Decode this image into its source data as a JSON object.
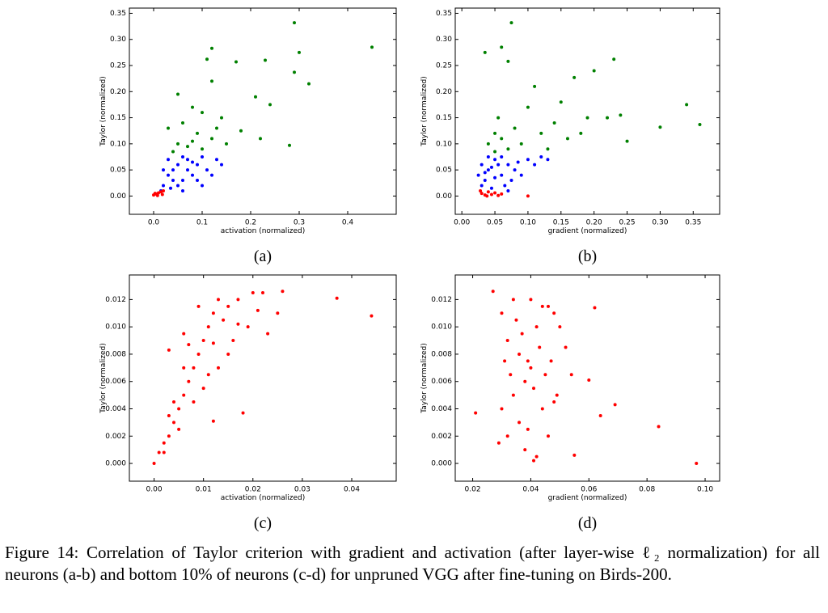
{
  "chart_data": [
    {
      "type": "scatter",
      "label": "(a)",
      "xlabel": "activation (normalized)",
      "ylabel": "Taylor (normalized)",
      "xlim": [
        -0.05,
        0.5
      ],
      "ylim": [
        -0.035,
        0.36
      ],
      "xticks": [
        {
          "value": 0,
          "label": "0.0"
        },
        0.1,
        0.2,
        0.3,
        0.4
      ],
      "yticks": [
        {
          "value": 0,
          "label": "0.00"
        },
        0.05,
        {
          "value": 0.1,
          "label": "0.10"
        },
        0.15,
        {
          "value": 0.2,
          "label": "0.20"
        },
        0.25,
        {
          "value": 0.3,
          "label": "0.30"
        },
        0.35
      ],
      "series": [
        {
          "color": "#008000",
          "x": [
            0.29,
            0.45,
            0.3,
            0.12,
            0.17,
            0.23,
            0.11,
            0.32,
            0.29,
            0.12,
            0.05,
            0.21,
            0.24,
            0.08,
            0.1,
            0.14,
            0.03,
            0.06,
            0.09,
            0.12,
            0.15,
            0.28,
            0.22,
            0.05,
            0.07,
            0.1,
            0.04,
            0.13,
            0.18,
            0.08
          ],
          "y": [
            0.332,
            0.285,
            0.275,
            0.283,
            0.257,
            0.26,
            0.262,
            0.215,
            0.237,
            0.22,
            0.195,
            0.19,
            0.175,
            0.17,
            0.16,
            0.15,
            0.13,
            0.14,
            0.12,
            0.11,
            0.1,
            0.097,
            0.11,
            0.1,
            0.095,
            0.09,
            0.085,
            0.13,
            0.125,
            0.105
          ]
        },
        {
          "color": "#0000ff",
          "x": [
            0.02,
            0.03,
            0.05,
            0.06,
            0.04,
            0.07,
            0.09,
            0.1,
            0.08,
            0.05,
            0.11,
            0.13,
            0.03,
            0.06,
            0.12,
            0.015,
            0.04,
            0.07,
            0.09,
            0.14,
            0.02,
            0.06,
            0.1,
            0.035,
            0.08
          ],
          "y": [
            0.02,
            0.04,
            0.06,
            0.03,
            0.05,
            0.07,
            0.06,
            0.075,
            0.04,
            0.02,
            0.05,
            0.07,
            0.07,
            0.075,
            0.04,
            0.01,
            0.03,
            0.05,
            0.03,
            0.06,
            0.05,
            0.01,
            0.02,
            0.015,
            0.065
          ]
        },
        {
          "color": "#ff0000",
          "x": [
            0,
            0.005,
            0.01,
            0.015,
            0.02,
            0.008,
            0.003,
            0.018
          ],
          "y": [
            0.002,
            0.004,
            0.006,
            0.008,
            0.01,
            0.001,
            0.005,
            0.003
          ]
        }
      ]
    },
    {
      "type": "scatter",
      "label": "(b)",
      "xlabel": "gradient (normalized)",
      "ylabel": "Taylor (normalized)",
      "xlim": [
        -0.01,
        0.39
      ],
      "ylim": [
        -0.035,
        0.36
      ],
      "xticks": [
        {
          "value": 0,
          "label": "0.00"
        },
        0.05,
        {
          "value": 0.1,
          "label": "0.10"
        },
        0.15,
        {
          "value": 0.2,
          "label": "0.20"
        },
        0.25,
        {
          "value": 0.3,
          "label": "0.30"
        },
        0.35
      ],
      "yticks": [
        {
          "value": 0,
          "label": "0.00"
        },
        0.05,
        {
          "value": 0.1,
          "label": "0.10"
        },
        0.15,
        {
          "value": 0.2,
          "label": "0.20"
        },
        0.25,
        {
          "value": 0.3,
          "label": "0.30"
        },
        0.35
      ],
      "series": [
        {
          "color": "#008000",
          "x": [
            0.075,
            0.06,
            0.035,
            0.07,
            0.23,
            0.2,
            0.34,
            0.36,
            0.3,
            0.25,
            0.17,
            0.11,
            0.15,
            0.19,
            0.1,
            0.08,
            0.05,
            0.04,
            0.06,
            0.12,
            0.09,
            0.14,
            0.22,
            0.07,
            0.05,
            0.16,
            0.24,
            0.18,
            0.13,
            0.055
          ],
          "y": [
            0.332,
            0.285,
            0.275,
            0.258,
            0.262,
            0.24,
            0.175,
            0.137,
            0.132,
            0.105,
            0.227,
            0.21,
            0.18,
            0.15,
            0.17,
            0.13,
            0.12,
            0.1,
            0.11,
            0.12,
            0.1,
            0.14,
            0.15,
            0.09,
            0.085,
            0.11,
            0.155,
            0.12,
            0.09,
            0.15
          ]
        },
        {
          "color": "#0000ff",
          "x": [
            0.03,
            0.04,
            0.05,
            0.035,
            0.06,
            0.07,
            0.08,
            0.1,
            0.12,
            0.045,
            0.055,
            0.065,
            0.03,
            0.09,
            0.11,
            0.04,
            0.075,
            0.05,
            0.06,
            0.13,
            0.035,
            0.085,
            0.045,
            0.07,
            0.025
          ],
          "y": [
            0.02,
            0.05,
            0.07,
            0.03,
            0.04,
            0.06,
            0.05,
            0.07,
            0.075,
            0.015,
            0.06,
            0.02,
            0.06,
            0.04,
            0.06,
            0.075,
            0.03,
            0.035,
            0.075,
            0.07,
            0.045,
            0.065,
            0.055,
            0.01,
            0.04
          ]
        },
        {
          "color": "#ff0000",
          "x": [
            0.03,
            0.035,
            0.04,
            0.045,
            0.05,
            0.055,
            0.06,
            0.1,
            0.028,
            0.038
          ],
          "y": [
            0.005,
            0.002,
            0.008,
            0.003,
            0.006,
            0.001,
            0.004,
            0,
            0.01,
            0
          ]
        }
      ]
    },
    {
      "type": "scatter",
      "label": "(c)",
      "xlabel": "activation (normalized)",
      "ylabel": "Taylor (normalized)",
      "xlim": [
        -0.005,
        0.049
      ],
      "ylim": [
        -0.0013,
        0.0138
      ],
      "xticks": [
        {
          "value": 0,
          "label": "0.00"
        },
        0.01,
        0.02,
        0.03,
        0.04
      ],
      "yticks": [
        {
          "value": 0,
          "label": "0.000"
        },
        0.002,
        0.004,
        0.006,
        0.008,
        {
          "value": 0.01,
          "label": "0.010"
        },
        0.012
      ],
      "series": [
        {
          "color": "#ff0000",
          "x": [
            0,
            0.001,
            0.002,
            0.003,
            0.004,
            0.005,
            0.006,
            0.004,
            0.007,
            0.008,
            0.009,
            0.01,
            0.011,
            0.012,
            0.013,
            0.015,
            0.017,
            0.02,
            0.022,
            0.026,
            0.037,
            0.044,
            0.018,
            0.012,
            0.003,
            0.006,
            0.009,
            0.014,
            0.016,
            0.019,
            0.023,
            0.025,
            0.008,
            0.01,
            0.013,
            0.015,
            0.006,
            0.005,
            0.002,
            0.011,
            0.021,
            0.007,
            0.003,
            0.012,
            0.017
          ],
          "y": [
            0,
            0.0008,
            0.0015,
            0.002,
            0.003,
            0.004,
            0.005,
            0.0045,
            0.006,
            0.007,
            0.008,
            0.009,
            0.01,
            0.011,
            0.012,
            0.0115,
            0.012,
            0.0125,
            0.0125,
            0.0126,
            0.0121,
            0.0108,
            0.0037,
            0.0031,
            0.0083,
            0.0095,
            0.0115,
            0.0105,
            0.009,
            0.01,
            0.0095,
            0.011,
            0.0045,
            0.0055,
            0.007,
            0.008,
            0.007,
            0.0025,
            0.0008,
            0.0065,
            0.0112,
            0.0087,
            0.0035,
            0.0088,
            0.0102
          ]
        }
      ]
    },
    {
      "type": "scatter",
      "label": "(d)",
      "xlabel": "gradient (normalized)",
      "ylabel": "Taylor (normalized)",
      "xlim": [
        0.014,
        0.105
      ],
      "ylim": [
        -0.0013,
        0.0138
      ],
      "xticks": [
        0.02,
        0.04,
        0.06,
        0.08,
        {
          "value": 0.1,
          "label": "0.10"
        }
      ],
      "yticks": [
        {
          "value": 0,
          "label": "0.000"
        },
        0.002,
        0.004,
        0.006,
        0.008,
        {
          "value": 0.01,
          "label": "0.010"
        },
        0.012
      ],
      "series": [
        {
          "color": "#ff0000",
          "x": [
            0.021,
            0.027,
            0.03,
            0.032,
            0.034,
            0.036,
            0.038,
            0.04,
            0.042,
            0.044,
            0.046,
            0.048,
            0.05,
            0.052,
            0.054,
            0.055,
            0.06,
            0.062,
            0.064,
            0.069,
            0.084,
            0.097,
            0.03,
            0.032,
            0.034,
            0.036,
            0.038,
            0.04,
            0.042,
            0.044,
            0.046,
            0.048,
            0.035,
            0.037,
            0.039,
            0.041,
            0.043,
            0.045,
            0.033,
            0.031,
            0.047,
            0.039,
            0.041,
            0.049,
            0.029
          ],
          "y": [
            0.0037,
            0.0126,
            0.011,
            0.009,
            0.012,
            0.008,
            0.006,
            0.012,
            0.01,
            0.0115,
            0.0115,
            0.011,
            0.01,
            0.0085,
            0.0065,
            0.0006,
            0.0061,
            0.0114,
            0.0035,
            0.0043,
            0.0027,
            0,
            0.004,
            0.002,
            0.005,
            0.003,
            0.001,
            0.007,
            0.0005,
            0.004,
            0.002,
            0.0045,
            0.0105,
            0.0095,
            0.0075,
            0.0055,
            0.0085,
            0.0065,
            0.0065,
            0.0075,
            0.0075,
            0.0025,
            0.0002,
            0.005,
            0.0015
          ]
        }
      ]
    }
  ],
  "caption": "Figure 14: Correlation of Taylor criterion with gradient and activation (after layer-wise ℓ₂ normalization) for all neurons (a-b) and bottom 10% of neurons (c-d) for unpruned VGG after fine-tuning on Birds-200."
}
